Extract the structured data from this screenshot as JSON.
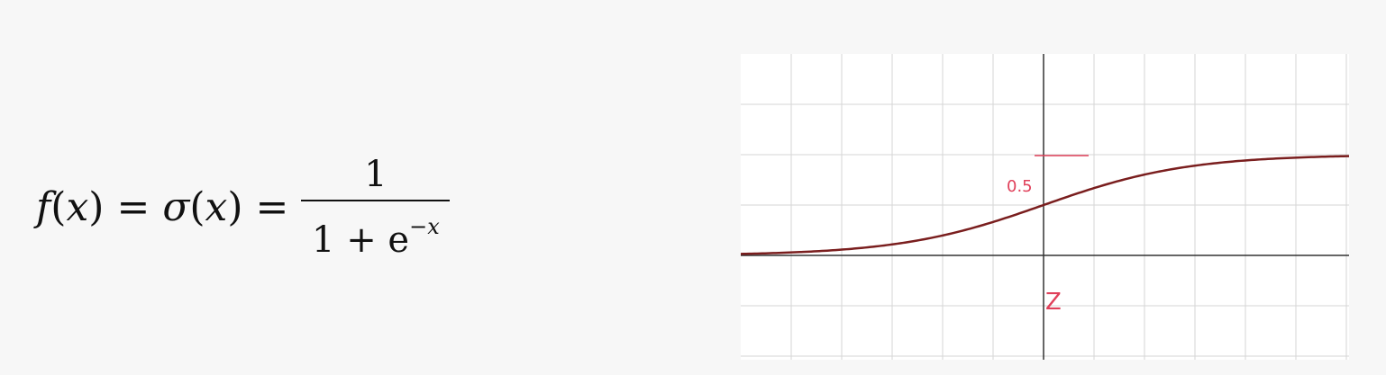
{
  "formula": {
    "f": "f",
    "x1": "x",
    "eq1": "=",
    "sigma": "σ",
    "x2": "x",
    "eq2": "=",
    "numerator": "1",
    "denominator_base": "1 + e",
    "exponent": "−x"
  },
  "graph": {
    "handwritten_label_y": "0.5",
    "handwritten_label_x": "Z",
    "axis_color": "#333333",
    "grid_color": "#d6d6d6",
    "curve_color": "#7a1e1e",
    "annotation_color": "#e0405a"
  }
}
